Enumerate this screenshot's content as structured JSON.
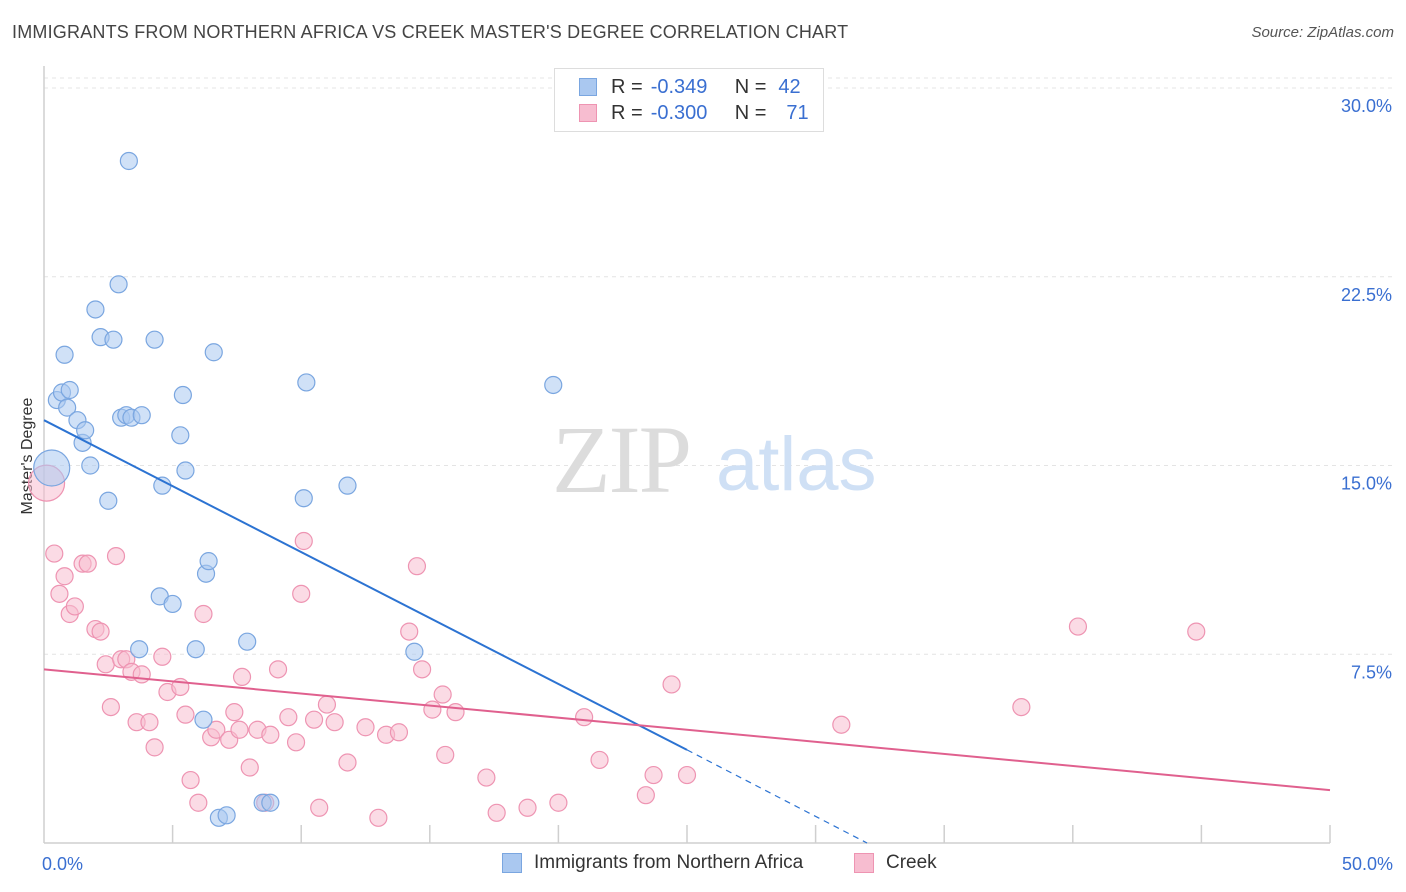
{
  "title": "IMMIGRANTS FROM NORTHERN AFRICA VS CREEK MASTER'S DEGREE CORRELATION CHART",
  "source": "Source: ZipAtlas.com",
  "watermark": {
    "zip": "ZIP",
    "atlas": "atlas"
  },
  "legend": {
    "rows": [
      {
        "r_label": "R =",
        "r_value": "-0.349",
        "n_label": "N =",
        "n_value": "42"
      },
      {
        "r_label": "R =",
        "r_value": "-0.300",
        "n_label": "N =",
        "n_value": "71"
      }
    ]
  },
  "bottom_legend": {
    "series1": "Immigrants from Northern Africa",
    "series2": "Creek"
  },
  "colors": {
    "blue_fill": "#aac8f0",
    "blue_stroke": "#7aa6e0",
    "blue_line": "#2c73d2",
    "pink_fill": "#f7bdd0",
    "pink_stroke": "#ee94b2",
    "pink_line": "#e0608e",
    "tick_text": "#3a6fd1"
  },
  "chart_data": {
    "type": "scatter",
    "title": "IMMIGRANTS FROM NORTHERN AFRICA VS CREEK MASTER'S DEGREE CORRELATION CHART",
    "xlabel": "",
    "ylabel": "Master's Degree",
    "xlim": [
      0,
      50
    ],
    "ylim": [
      0,
      30
    ],
    "x_ticks": [
      {
        "value": 0,
        "label": "0.0%"
      },
      {
        "value": 50,
        "label": "50.0%"
      }
    ],
    "y_ticks": [
      {
        "value": 7.5,
        "label": "7.5%"
      },
      {
        "value": 15.0,
        "label": "15.0%"
      },
      {
        "value": 22.5,
        "label": "22.5%"
      },
      {
        "value": 30.0,
        "label": "30.0%"
      }
    ],
    "grid": true,
    "series": [
      {
        "name": "Immigrants from Northern Africa",
        "color": "blue",
        "trend": {
          "x": [
            0,
            25
          ],
          "y": [
            16.8,
            3.7
          ]
        },
        "trend_dashed": {
          "x": [
            25,
            32
          ],
          "y": [
            3.7,
            0
          ]
        },
        "points": [
          [
            0.3,
            14.9,
            "big"
          ],
          [
            0.5,
            17.6
          ],
          [
            0.7,
            17.9
          ],
          [
            0.8,
            19.4
          ],
          [
            0.9,
            17.3
          ],
          [
            1.0,
            18.0
          ],
          [
            1.3,
            16.8
          ],
          [
            1.5,
            15.9
          ],
          [
            1.6,
            16.4
          ],
          [
            1.8,
            15.0
          ],
          [
            2.0,
            21.2
          ],
          [
            2.2,
            20.1
          ],
          [
            2.5,
            13.6
          ],
          [
            2.7,
            20.0
          ],
          [
            2.9,
            22.2
          ],
          [
            3.0,
            16.9
          ],
          [
            3.2,
            17.0
          ],
          [
            3.3,
            27.1
          ],
          [
            3.4,
            16.9
          ],
          [
            3.7,
            7.7
          ],
          [
            3.8,
            17.0
          ],
          [
            4.3,
            20.0
          ],
          [
            4.5,
            9.8
          ],
          [
            4.6,
            14.2
          ],
          [
            5.0,
            9.5
          ],
          [
            5.3,
            16.2
          ],
          [
            5.4,
            17.8
          ],
          [
            5.5,
            14.8
          ],
          [
            5.9,
            7.7
          ],
          [
            6.2,
            4.9
          ],
          [
            6.3,
            10.7
          ],
          [
            6.4,
            11.2
          ],
          [
            6.6,
            19.5
          ],
          [
            6.8,
            1.0
          ],
          [
            7.1,
            1.1
          ],
          [
            7.9,
            8.0
          ],
          [
            8.5,
            1.6
          ],
          [
            8.8,
            1.6
          ],
          [
            10.1,
            13.7
          ],
          [
            10.2,
            18.3
          ],
          [
            11.8,
            14.2
          ],
          [
            19.8,
            18.2
          ],
          [
            14.4,
            7.6
          ]
        ]
      },
      {
        "name": "Creek",
        "color": "pink",
        "trend": {
          "x": [
            0,
            50
          ],
          "y": [
            6.9,
            2.1
          ]
        },
        "points": [
          [
            0.1,
            14.3,
            "big"
          ],
          [
            0.4,
            11.5
          ],
          [
            0.6,
            9.9
          ],
          [
            0.8,
            10.6
          ],
          [
            1.0,
            9.1
          ],
          [
            1.2,
            9.4
          ],
          [
            1.5,
            11.1
          ],
          [
            1.7,
            11.1
          ],
          [
            2.0,
            8.5
          ],
          [
            2.2,
            8.4
          ],
          [
            2.4,
            7.1
          ],
          [
            2.6,
            5.4
          ],
          [
            2.8,
            11.4
          ],
          [
            3.0,
            7.3
          ],
          [
            3.2,
            7.3
          ],
          [
            3.4,
            6.8
          ],
          [
            3.6,
            4.8
          ],
          [
            3.8,
            6.7
          ],
          [
            4.1,
            4.8
          ],
          [
            4.3,
            3.8
          ],
          [
            4.6,
            7.4
          ],
          [
            4.8,
            6.0
          ],
          [
            5.3,
            6.2
          ],
          [
            5.5,
            5.1
          ],
          [
            5.7,
            2.5
          ],
          [
            6.0,
            1.6
          ],
          [
            6.2,
            9.1
          ],
          [
            6.5,
            4.2
          ],
          [
            6.7,
            4.5
          ],
          [
            7.2,
            4.1
          ],
          [
            7.4,
            5.2
          ],
          [
            7.6,
            4.5
          ],
          [
            7.7,
            6.6
          ],
          [
            8.0,
            3.0
          ],
          [
            8.3,
            4.5
          ],
          [
            8.6,
            1.6
          ],
          [
            8.8,
            4.3
          ],
          [
            9.1,
            6.9
          ],
          [
            9.5,
            5.0
          ],
          [
            9.8,
            4.0
          ],
          [
            10.0,
            9.9
          ],
          [
            10.1,
            12.0
          ],
          [
            10.5,
            4.9
          ],
          [
            10.7,
            1.4
          ],
          [
            11.0,
            5.5
          ],
          [
            11.3,
            4.8
          ],
          [
            11.8,
            3.2
          ],
          [
            12.5,
            4.6
          ],
          [
            13.0,
            1.0
          ],
          [
            13.3,
            4.3
          ],
          [
            13.8,
            4.4
          ],
          [
            14.2,
            8.4
          ],
          [
            14.5,
            11.0
          ],
          [
            14.7,
            6.9
          ],
          [
            15.1,
            5.3
          ],
          [
            15.5,
            5.9
          ],
          [
            15.6,
            3.5
          ],
          [
            16.0,
            5.2
          ],
          [
            17.2,
            2.6
          ],
          [
            17.6,
            1.2
          ],
          [
            18.8,
            1.4
          ],
          [
            20.0,
            1.6
          ],
          [
            21.0,
            5.0
          ],
          [
            21.6,
            3.3
          ],
          [
            23.4,
            1.9
          ],
          [
            23.7,
            2.7
          ],
          [
            24.4,
            6.3
          ],
          [
            25.0,
            2.7
          ],
          [
            31.0,
            4.7
          ],
          [
            38.0,
            5.4
          ],
          [
            40.2,
            8.6
          ],
          [
            44.8,
            8.4
          ]
        ]
      }
    ]
  }
}
